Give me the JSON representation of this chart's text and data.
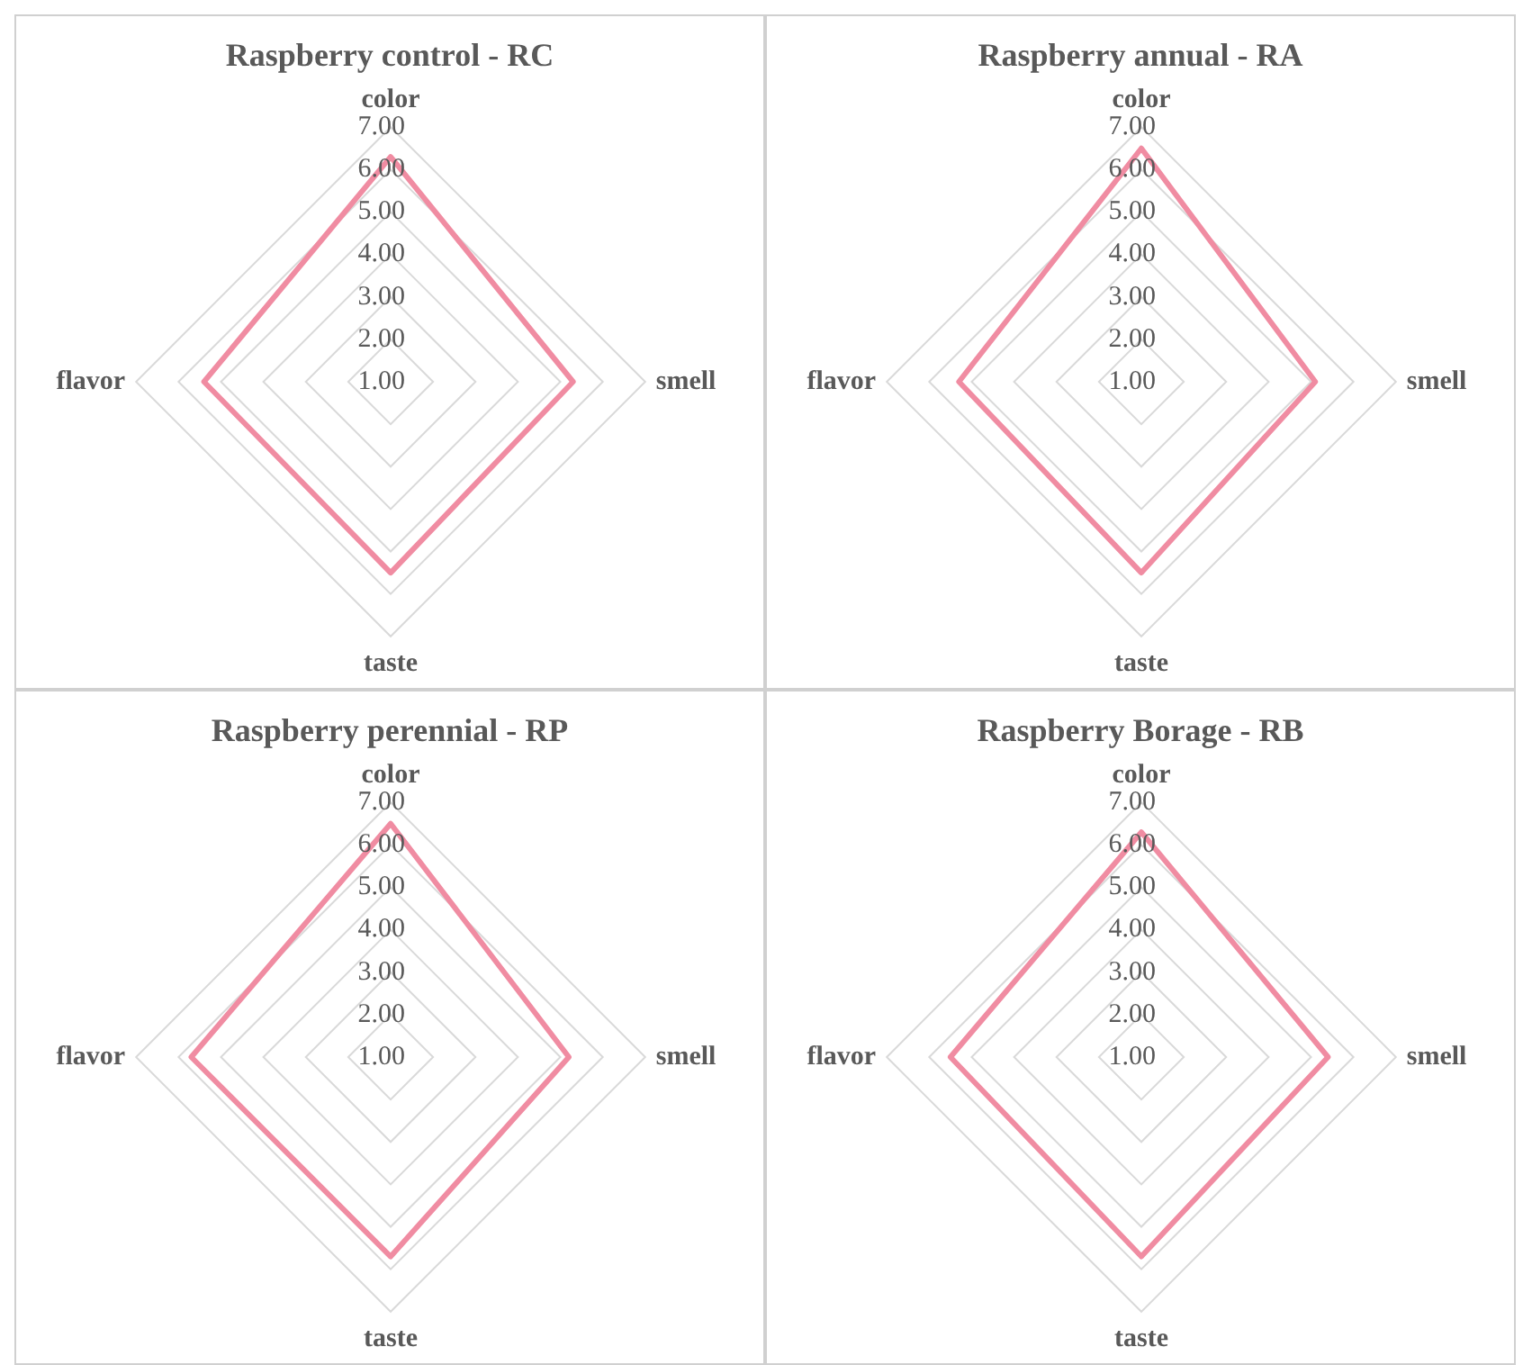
{
  "chart_data": [
    {
      "type": "radar",
      "title": "Raspberry control - RC",
      "categories": [
        "color",
        "smell",
        "taste",
        "flavor"
      ],
      "series": [
        {
          "color": "#f08ca2",
          "values": [
            6.3,
            5.3,
            5.5,
            5.4
          ]
        }
      ],
      "ylim": [
        1,
        7
      ],
      "yticks": [
        {
          "value": 1,
          "label": "1.00"
        },
        {
          "value": 2,
          "label": "2.00"
        },
        {
          "value": 3,
          "label": "3.00"
        },
        {
          "value": 4,
          "label": "4.00"
        },
        {
          "value": 5,
          "label": "5.00"
        },
        {
          "value": 6,
          "label": "6.00"
        },
        {
          "value": 7,
          "label": "7.00"
        }
      ],
      "grid": true,
      "marker": "none",
      "legend": false
    },
    {
      "type": "radar",
      "title": "Raspberry annual - RA",
      "categories": [
        "color",
        "smell",
        "taste",
        "flavor"
      ],
      "series": [
        {
          "color": "#f08ca2",
          "values": [
            6.5,
            5.1,
            5.5,
            5.3
          ]
        }
      ],
      "ylim": [
        1,
        7
      ],
      "yticks": [
        {
          "value": 1,
          "label": "1.00"
        },
        {
          "value": 2,
          "label": "2.00"
        },
        {
          "value": 3,
          "label": "3.00"
        },
        {
          "value": 4,
          "label": "4.00"
        },
        {
          "value": 5,
          "label": "5.00"
        },
        {
          "value": 6,
          "label": "6.00"
        },
        {
          "value": 7,
          "label": "7.00"
        }
      ],
      "grid": true,
      "marker": "none",
      "legend": false
    },
    {
      "type": "radar",
      "title": "Raspberry perennial - RP",
      "categories": [
        "color",
        "smell",
        "taste",
        "flavor"
      ],
      "series": [
        {
          "color": "#f08ca2",
          "values": [
            6.5,
            5.2,
            5.7,
            5.7
          ]
        }
      ],
      "ylim": [
        1,
        7
      ],
      "yticks": [
        {
          "value": 1,
          "label": "1.00"
        },
        {
          "value": 2,
          "label": "2.00"
        },
        {
          "value": 3,
          "label": "3.00"
        },
        {
          "value": 4,
          "label": "4.00"
        },
        {
          "value": 5,
          "label": "5.00"
        },
        {
          "value": 6,
          "label": "6.00"
        },
        {
          "value": 7,
          "label": "7.00"
        }
      ],
      "grid": true,
      "marker": "none",
      "legend": false
    },
    {
      "type": "radar",
      "title": "Raspberry Borage - RB",
      "categories": [
        "color",
        "smell",
        "taste",
        "flavor"
      ],
      "series": [
        {
          "color": "#f08ca2",
          "values": [
            6.3,
            5.4,
            5.7,
            5.5
          ]
        }
      ],
      "ylim": [
        1,
        7
      ],
      "yticks": [
        {
          "value": 1,
          "label": "1.00"
        },
        {
          "value": 2,
          "label": "2.00"
        },
        {
          "value": 3,
          "label": "3.00"
        },
        {
          "value": 4,
          "label": "4.00"
        },
        {
          "value": 5,
          "label": "5.00"
        },
        {
          "value": 6,
          "label": "6.00"
        },
        {
          "value": 7,
          "label": "7.00"
        }
      ],
      "grid": true,
      "marker": "none",
      "legend": false
    }
  ]
}
